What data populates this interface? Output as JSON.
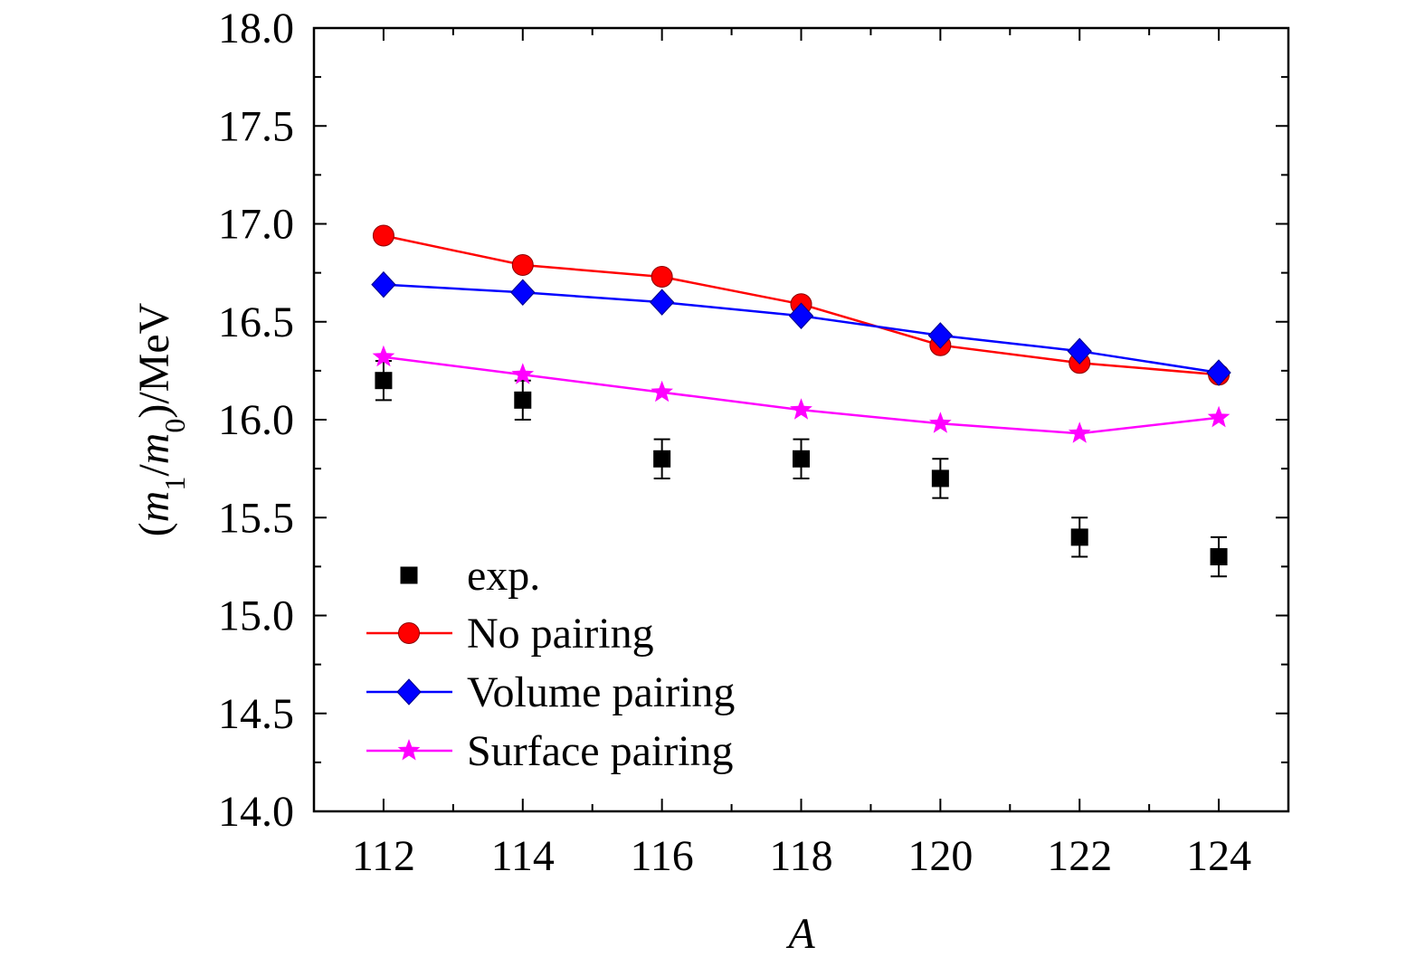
{
  "chart_data": {
    "type": "line",
    "x": [
      112,
      114,
      116,
      118,
      120,
      122,
      124
    ],
    "xlabel": "A",
    "ylabel": "(m1/m0)/MeV",
    "ylabel_parts": {
      "open": "(",
      "m": "m",
      "sub1": "1",
      "slash": "/",
      "m2": "m",
      "sub0": "0",
      "close": ")/MeV"
    },
    "xlim": [
      111,
      125
    ],
    "ylim": [
      14.0,
      18.0
    ],
    "xticks": [
      "112",
      "114",
      "116",
      "118",
      "120",
      "122",
      "124"
    ],
    "yticks": [
      "14.0",
      "14.5",
      "15.0",
      "15.5",
      "16.0",
      "16.5",
      "17.0",
      "17.5",
      "18.0"
    ],
    "grid": false,
    "legend_position": "bottom-left",
    "series": [
      {
        "name": "exp.",
        "marker": "square",
        "color": "#000000",
        "line": false,
        "values": [
          16.2,
          16.1,
          15.8,
          15.8,
          15.7,
          15.4,
          15.3
        ],
        "errors": [
          0.1,
          0.1,
          0.1,
          0.1,
          0.1,
          0.1,
          0.1
        ]
      },
      {
        "name": "No pairing",
        "marker": "circle",
        "color": "#ff0000",
        "line": true,
        "values": [
          16.94,
          16.79,
          16.73,
          16.59,
          16.38,
          16.29,
          16.23
        ]
      },
      {
        "name": "Volume pairing",
        "marker": "diamond",
        "color": "#0000ff",
        "line": true,
        "values": [
          16.69,
          16.65,
          16.6,
          16.53,
          16.43,
          16.35,
          16.24
        ]
      },
      {
        "name": "Surface pairing",
        "marker": "star",
        "color": "#ff00ff",
        "line": true,
        "values": [
          16.32,
          16.23,
          16.14,
          16.05,
          15.98,
          15.93,
          16.01
        ]
      }
    ]
  }
}
